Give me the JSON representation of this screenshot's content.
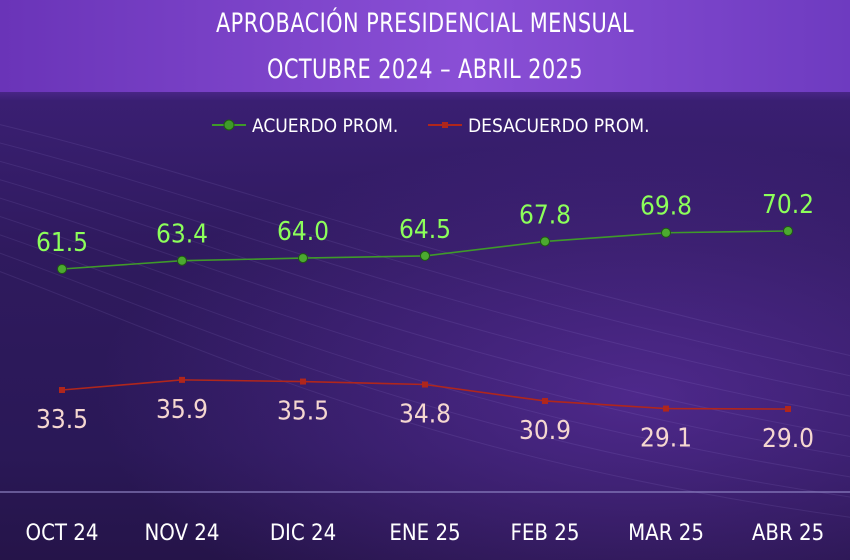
{
  "chart_data": {
    "type": "line",
    "title": "APROBACIÓN PRESIDENCIAL MENSUAL",
    "subtitle": "OCTUBRE 2024 – ABRIL 2025",
    "categories": [
      "OCT 24",
      "NOV 24",
      "DIC 24",
      "ENE 25",
      "FEB 25",
      "MAR 25",
      "ABR 25"
    ],
    "series": [
      {
        "name": "ACUERDO PROM.",
        "color": "#3f9a2a",
        "label_color": "#8cff5a",
        "values": [
          61.5,
          63.4,
          64.0,
          64.5,
          67.8,
          69.8,
          70.2
        ],
        "value_labels": [
          "61.5",
          "63.4",
          "64.0",
          "64.5",
          "67.8",
          "69.8",
          "70.2"
        ]
      },
      {
        "name": "DESACUERDO PROM.",
        "color": "#b0261c",
        "label_color": "#f5d7d0",
        "values": [
          33.5,
          35.9,
          35.5,
          34.8,
          30.9,
          29.1,
          29.0
        ],
        "value_labels": [
          "33.5",
          "35.9",
          "35.5",
          "34.8",
          "30.9",
          "29.1",
          "29.0"
        ]
      }
    ],
    "legend_position": "top-center",
    "grid": false,
    "y_axis_visible": false
  }
}
